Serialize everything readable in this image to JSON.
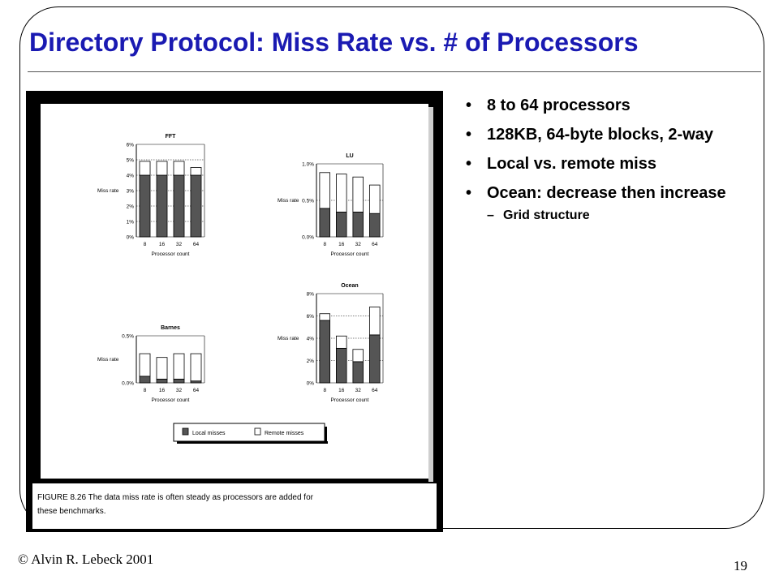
{
  "slide": {
    "title": "Directory Protocol: Miss Rate vs. # of Processors",
    "bullets": [
      {
        "text": "8 to 64 processors",
        "level": 1
      },
      {
        "text": "128KB, 64-byte blocks, 2-way",
        "level": 1
      },
      {
        "text": "Local vs. remote miss",
        "level": 1
      },
      {
        "text": "Ocean: decrease then increase",
        "level": 1
      },
      {
        "text": "Grid structure",
        "level": 2
      }
    ],
    "footer_left": "© Alvin R. Lebeck 2001",
    "page_number": "19"
  },
  "figure": {
    "caption": "FIGURE 8.26  The data miss rate is often steady as processors are added for these benchmarks.",
    "legend": {
      "local": "Local misses",
      "remote": "Remote misses"
    }
  },
  "chart_data": [
    {
      "type": "bar",
      "stacked": true,
      "title": "FFT",
      "xlabel": "Processor count",
      "ylabel": "Miss rate",
      "categories": [
        "8",
        "16",
        "32",
        "64"
      ],
      "yticks": [
        "0%",
        "1%",
        "2%",
        "3%",
        "4%",
        "5%",
        "6%"
      ],
      "ylim": [
        0,
        6
      ],
      "series": [
        {
          "name": "Local misses",
          "values": [
            4.0,
            4.0,
            4.0,
            4.0
          ]
        },
        {
          "name": "Remote misses",
          "values": [
            0.9,
            0.9,
            0.9,
            0.5
          ]
        }
      ]
    },
    {
      "type": "bar",
      "stacked": true,
      "title": "LU",
      "xlabel": "Processor count",
      "ylabel": "Miss rate",
      "categories": [
        "8",
        "16",
        "32",
        "64"
      ],
      "yticks": [
        "0.0%",
        "0.5%",
        "1.0%"
      ],
      "ylim": [
        0,
        1.0
      ],
      "series": [
        {
          "name": "Local misses",
          "values": [
            0.39,
            0.34,
            0.34,
            0.32
          ]
        },
        {
          "name": "Remote misses",
          "values": [
            0.49,
            0.52,
            0.48,
            0.39
          ]
        }
      ]
    },
    {
      "type": "bar",
      "stacked": true,
      "title": "Barnes",
      "xlabel": "Processor count",
      "ylabel": "Miss rate",
      "categories": [
        "8",
        "16",
        "32",
        "64"
      ],
      "yticks": [
        "0.0%",
        "0.5%"
      ],
      "ylim": [
        0,
        0.5
      ],
      "series": [
        {
          "name": "Local misses",
          "values": [
            0.07,
            0.04,
            0.04,
            0.02
          ]
        },
        {
          "name": "Remote misses",
          "values": [
            0.24,
            0.23,
            0.27,
            0.29
          ]
        }
      ]
    },
    {
      "type": "bar",
      "stacked": true,
      "title": "Ocean",
      "xlabel": "Processor count",
      "ylabel": "Miss rate",
      "categories": [
        "8",
        "16",
        "32",
        "64"
      ],
      "yticks": [
        "0%",
        "2%",
        "4%",
        "6%",
        "8%"
      ],
      "ylim": [
        0,
        8
      ],
      "series": [
        {
          "name": "Local misses",
          "values": [
            5.6,
            3.1,
            1.9,
            4.3
          ]
        },
        {
          "name": "Remote misses",
          "values": [
            0.6,
            1.1,
            1.1,
            2.5
          ]
        }
      ]
    }
  ]
}
